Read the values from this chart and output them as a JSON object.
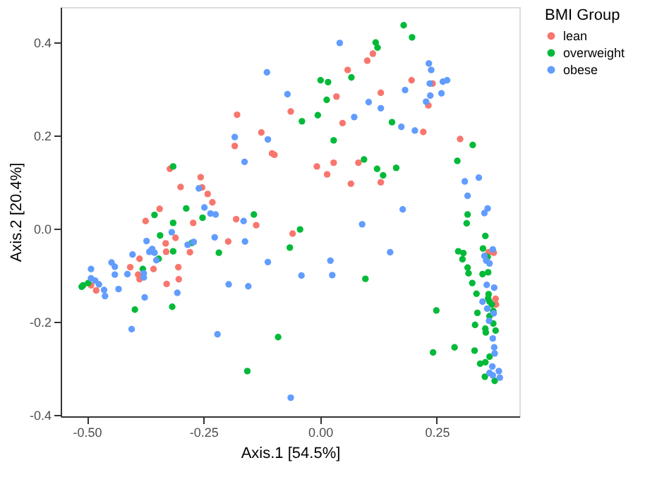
{
  "chart_data": {
    "type": "scatter",
    "xlabel": "Axis.1   [54.5%]",
    "ylabel": "Axis.2   [20.4%]",
    "legend_title": "BMI Group",
    "legend": "right",
    "grid": false,
    "marker": "circle",
    "xlim": [
      -0.556,
      0.427
    ],
    "ylim": [
      -0.403,
      0.475
    ],
    "xticks": [
      {
        "value": -0.5,
        "label": "-0.50"
      },
      {
        "value": -0.25,
        "label": "-0.25"
      },
      {
        "value": 0,
        "label": "0.00"
      },
      {
        "value": 0.25,
        "label": "0.25"
      }
    ],
    "yticks": [
      {
        "value": -0.4,
        "label": "-0.4"
      },
      {
        "value": -0.2,
        "label": "-0.2"
      },
      {
        "value": 0,
        "label": "0.0"
      },
      {
        "value": 0.2,
        "label": "0.2"
      },
      {
        "value": 0.4,
        "label": "0.4"
      }
    ],
    "series": [
      {
        "name": "lean",
        "color": "#f8766d",
        "x": [
          -0.063,
          -0.178,
          -0.126,
          -0.183,
          -0.103,
          -0.098,
          -0.322,
          -0.299,
          -0.256,
          -0.253,
          -0.241,
          -0.231,
          -0.344,
          0.113,
          0.101,
          0.059,
          0.035,
          0.13,
          0.048,
          0.196,
          0.241,
          0.221,
          0.232,
          0.3,
          -0.007,
          0.015,
          0.029,
          0.082,
          0.066,
          0.13,
          -0.374,
          -0.272,
          -0.18,
          -0.137,
          -0.31,
          -0.331,
          -0.197,
          -0.279,
          -0.33,
          -0.387,
          -0.407,
          -0.357,
          -0.39,
          -0.387,
          -0.304,
          -0.303,
          -0.329,
          -0.48,
          -0.491,
          -0.059,
          0.361,
          0.372,
          0.376,
          0.377
        ],
        "values": [
          0.251,
          0.244,
          0.206,
          0.177,
          0.161,
          0.158,
          0.128,
          0.089,
          0.11,
          0.088,
          0.074,
          0.056,
          0.042,
          0.375,
          0.36,
          0.34,
          0.283,
          0.291,
          0.226,
          0.318,
          0.311,
          0.207,
          0.264,
          0.192,
          0.133,
          0.116,
          0.141,
          0.141,
          0.096,
          0.099,
          0.016,
          0.012,
          0.02,
          0.007,
          -0.02,
          -0.032,
          -0.028,
          -0.051,
          -0.05,
          -0.065,
          -0.083,
          -0.087,
          -0.099,
          -0.109,
          -0.083,
          -0.109,
          -0.119,
          -0.133,
          -0.122,
          -0.011,
          -0.051,
          -0.052,
          -0.151,
          -0.163
        ]
      },
      {
        "name": "overweight",
        "color": "#00ba38",
        "x": [
          -0.039,
          -0.315,
          -0.287,
          -0.355,
          -0.142,
          0.179,
          0.197,
          0.119,
          0.123,
          0.001,
          0.017,
          0.067,
          0.014,
          -0.005,
          0.154,
          0.029,
          0.327,
          0.294,
          0.316,
          0.094,
          0.122,
          0.135,
          0.163,
          -0.252,
          -0.315,
          -0.343,
          -0.275,
          -0.217,
          -0.315,
          -0.346,
          -0.38,
          -0.497,
          -0.511,
          -0.508,
          -0.043,
          -0.065,
          -0.397,
          -0.317,
          -0.09,
          -0.156,
          0.314,
          0.097,
          0.354,
          0.296,
          0.307,
          0.305,
          0.349,
          0.359,
          0.316,
          0.318,
          0.348,
          0.36,
          0.326,
          0.335,
          0.361,
          0.36,
          0.363,
          0.368,
          0.371,
          0.363,
          0.337,
          0.249,
          0.371,
          0.332,
          0.354,
          0.355,
          0.376,
          0.288,
          0.242,
          0.331,
          0.363,
          0.343,
          0.354,
          0.353,
          0.374
        ],
        "values": [
          0.23,
          0.133,
          0.043,
          0.029,
          0.03,
          0.436,
          0.41,
          0.399,
          0.388,
          0.318,
          0.314,
          0.324,
          0.276,
          0.243,
          0.228,
          0.189,
          0.179,
          0.145,
          0.03,
          0.148,
          0.128,
          0.114,
          0.13,
          0.023,
          0.012,
          -0.015,
          -0.031,
          -0.052,
          -0.049,
          -0.065,
          -0.087,
          -0.117,
          -0.125,
          -0.122,
          -0.002,
          -0.041,
          -0.174,
          -0.168,
          -0.233,
          -0.306,
          0.011,
          -0.108,
          -0.016,
          -0.049,
          -0.053,
          -0.066,
          -0.043,
          -0.061,
          -0.084,
          -0.096,
          -0.098,
          -0.094,
          -0.117,
          -0.14,
          -0.141,
          -0.15,
          -0.157,
          -0.163,
          -0.177,
          -0.188,
          -0.181,
          -0.176,
          -0.204,
          -0.207,
          -0.215,
          -0.223,
          -0.219,
          -0.255,
          -0.266,
          -0.262,
          -0.275,
          -0.29,
          -0.287,
          -0.318,
          -0.327
        ]
      },
      {
        "name": "obese",
        "color": "#619cff",
        "x": [
          -0.114,
          -0.07,
          -0.183,
          -0.112,
          -0.162,
          -0.26,
          -0.248,
          -0.235,
          -0.224,
          0.042,
          0.073,
          0.104,
          0.13,
          0.174,
          0.203,
          0.182,
          0.233,
          0.238,
          0.235,
          0.263,
          0.272,
          0.236,
          0.26,
          0.227,
          0.31,
          0.34,
          0.316,
          0.359,
          0.352,
          0.177,
          -0.164,
          -0.372,
          -0.318,
          -0.284,
          -0.271,
          -0.226,
          -0.161,
          -0.366,
          -0.36,
          -0.355,
          -0.351,
          -0.402,
          -0.447,
          -0.44,
          -0.491,
          -0.378,
          -0.378,
          -0.413,
          -0.44,
          -0.306,
          -0.376,
          -0.432,
          -0.463,
          -0.461,
          -0.491,
          -0.482,
          -0.474,
          -0.196,
          -0.154,
          -0.112,
          -0.04,
          -0.404,
          -0.22,
          -0.063,
          0.09,
          0.022,
          0.026,
          0.15,
          0.37,
          0.352,
          0.356,
          0.363,
          0.357,
          0.373,
          0.348,
          0.358,
          0.372,
          0.362,
          0.37,
          0.373,
          0.374,
          0.369,
          0.363,
          0.383,
          0.37,
          0.385
        ],
        "values": [
          0.335,
          0.288,
          0.196,
          0.191,
          0.143,
          0.086,
          0.045,
          0.032,
          0.03,
          0.398,
          0.239,
          0.271,
          0.258,
          0.218,
          0.21,
          0.297,
          0.354,
          0.34,
          0.311,
          0.315,
          0.318,
          0.285,
          0.29,
          0.272,
          0.101,
          0.109,
          0.07,
          0.043,
          0.033,
          0.041,
          0.016,
          -0.027,
          -0.008,
          -0.035,
          -0.029,
          -0.019,
          -0.028,
          -0.05,
          -0.044,
          -0.052,
          -0.068,
          -0.056,
          -0.073,
          -0.082,
          -0.087,
          -0.096,
          -0.105,
          -0.098,
          -0.099,
          -0.138,
          -0.148,
          -0.13,
          -0.132,
          -0.145,
          -0.107,
          -0.112,
          -0.12,
          -0.12,
          -0.124,
          -0.072,
          -0.101,
          -0.216,
          -0.227,
          -0.363,
          0.009,
          -0.069,
          -0.1,
          -0.051,
          -0.045,
          -0.059,
          -0.069,
          -0.075,
          -0.121,
          -0.127,
          -0.157,
          -0.172,
          -0.182,
          -0.198,
          -0.236,
          -0.255,
          -0.268,
          -0.296,
          -0.31,
          -0.306,
          -0.315,
          -0.32
        ]
      }
    ]
  }
}
